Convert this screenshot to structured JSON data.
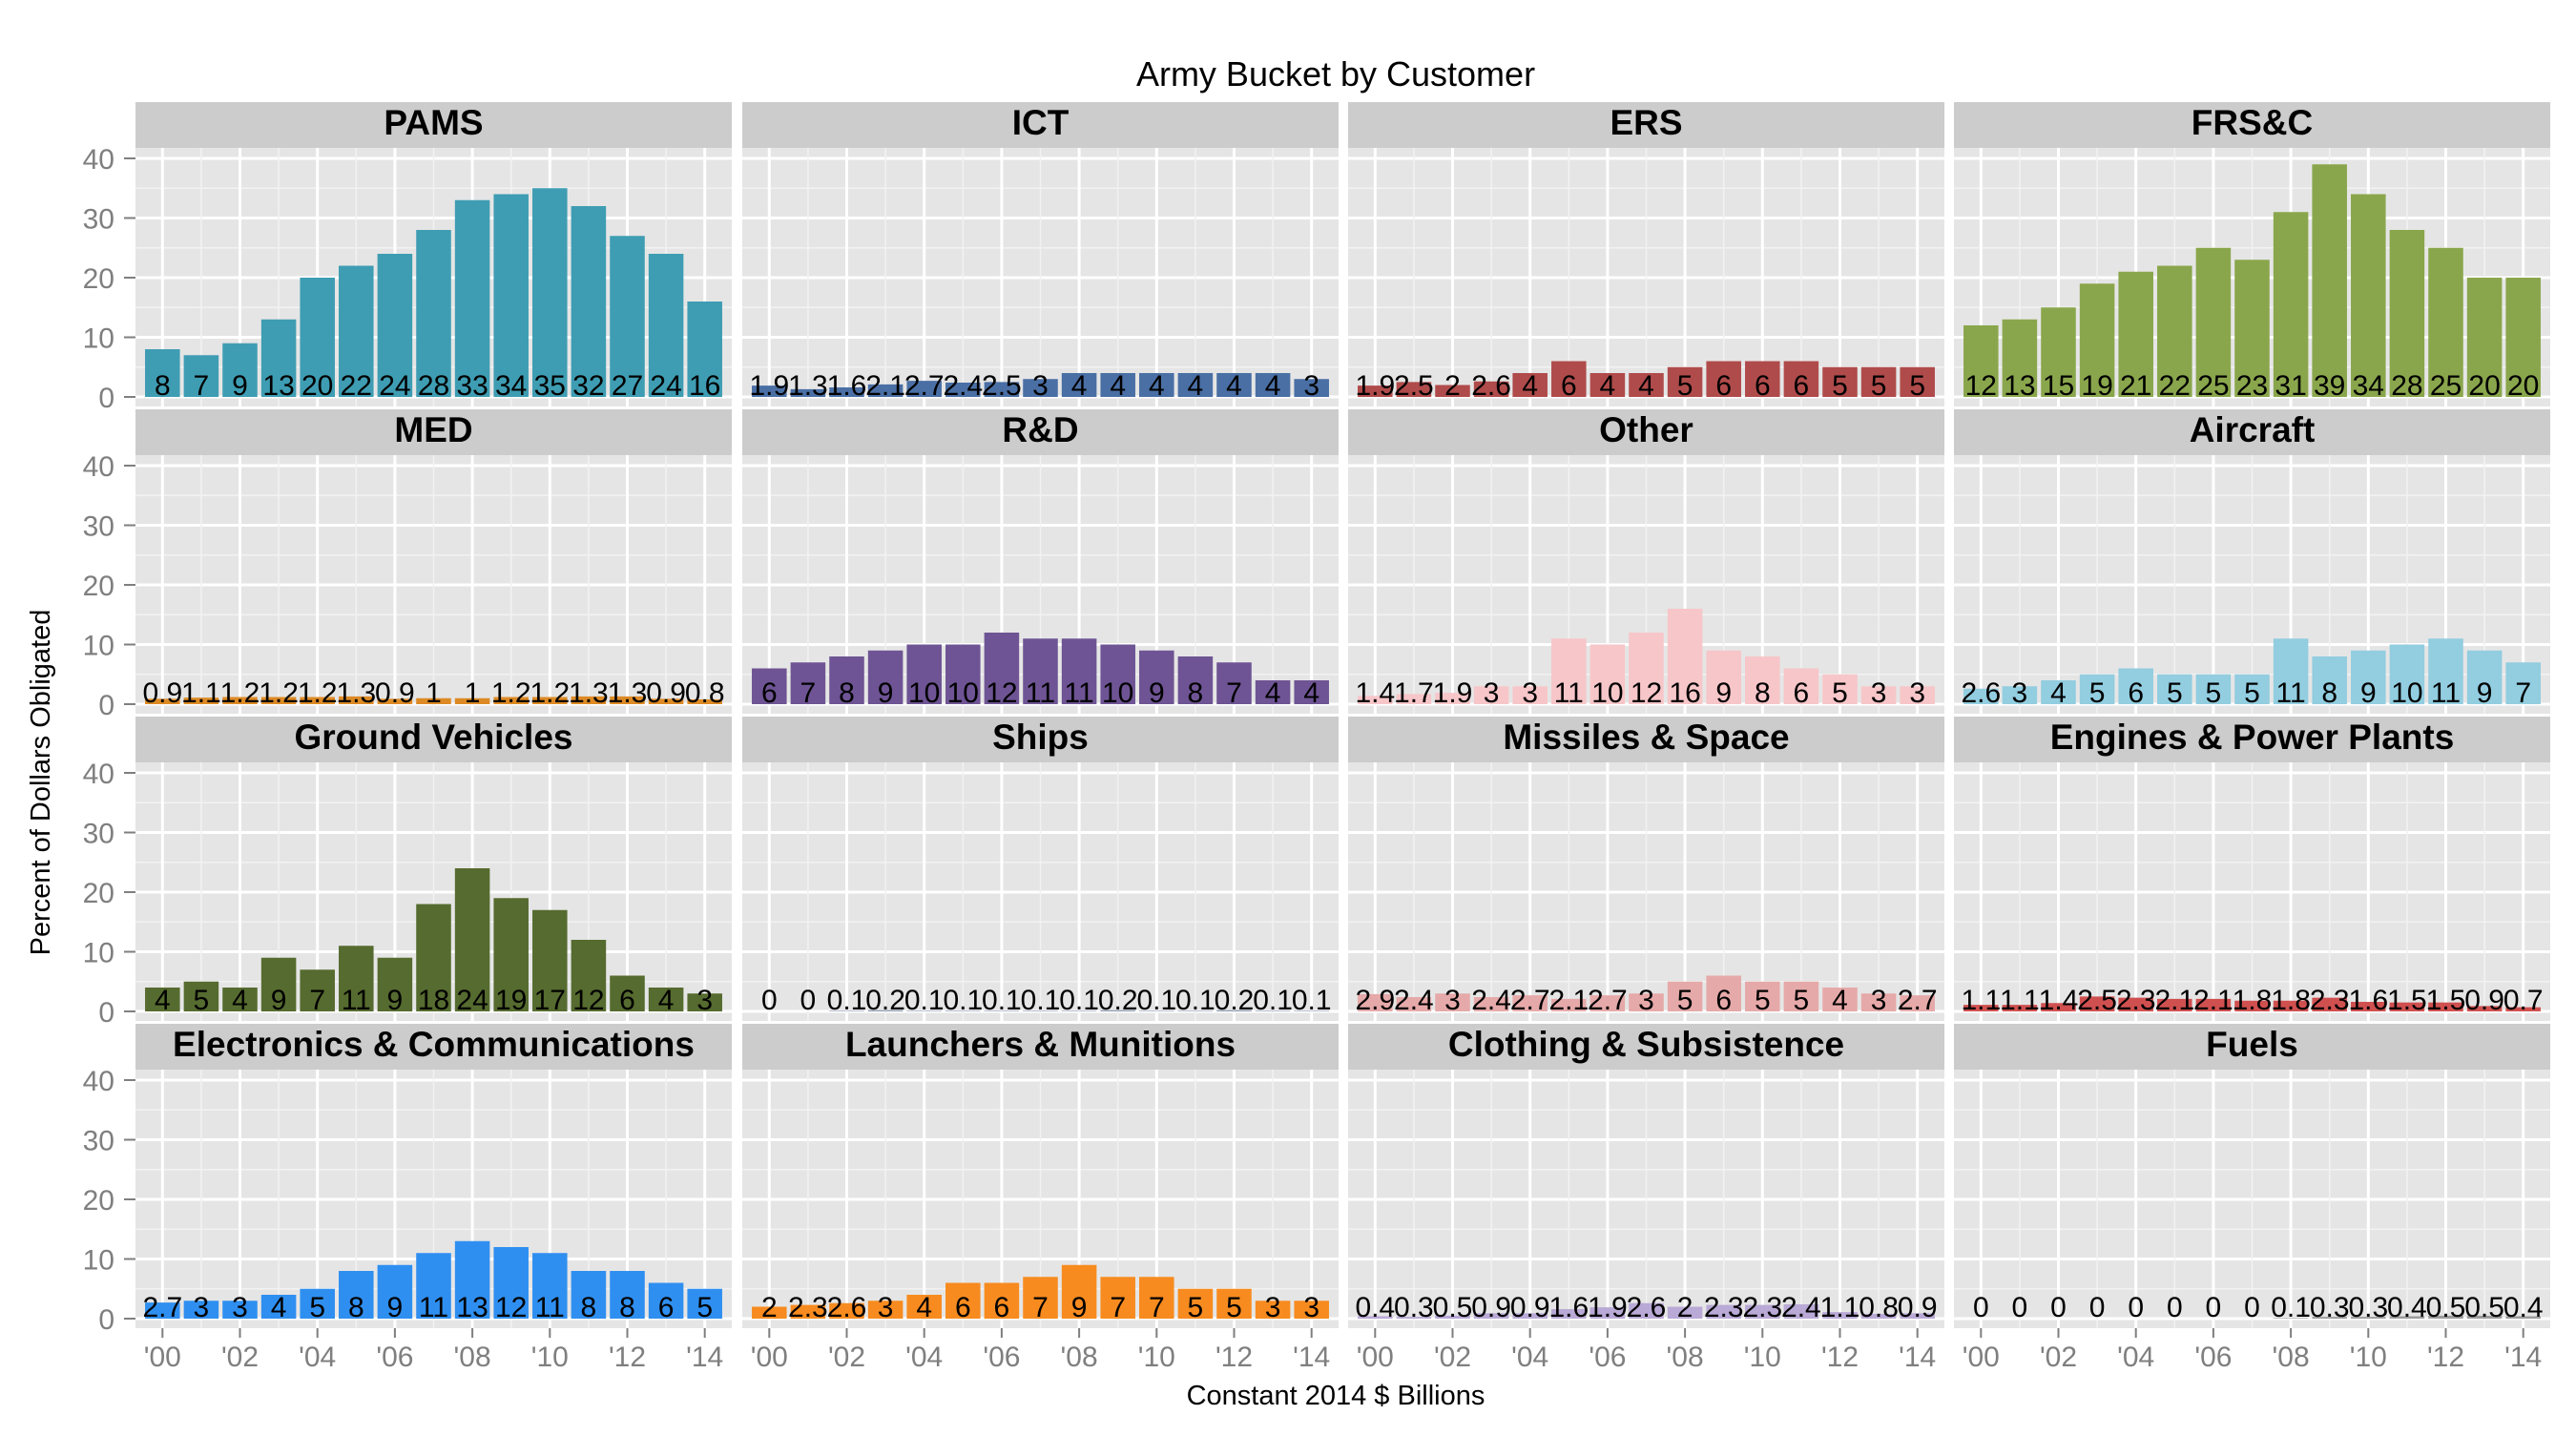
{
  "chart_data": {
    "type": "bar",
    "title": "Army Bucket by Customer",
    "xlabel": "Constant 2014 $ Billions",
    "ylabel": "Percent of Dollars Obligated",
    "ylim": [
      0,
      40
    ],
    "yticks": [
      0,
      10,
      20,
      30,
      40
    ],
    "years": [
      "'00",
      "'01",
      "'02",
      "'03",
      "'04",
      "'05",
      "'06",
      "'07",
      "'08",
      "'09",
      "'10",
      "'11",
      "'12",
      "'13",
      "'14"
    ],
    "xtick_labels": [
      "'00",
      "'02",
      "'04",
      "'06",
      "'08",
      "'10",
      "'12",
      "'14"
    ],
    "grid": true,
    "legend": "none",
    "panels": [
      {
        "name": "PAMS",
        "color": "#3e9db3",
        "values": [
          8,
          7,
          9,
          13,
          20,
          22,
          24,
          28,
          33,
          34,
          35,
          32,
          27,
          24,
          16
        ],
        "labels": [
          "8",
          "7",
          "9",
          "13",
          "20",
          "22",
          "24",
          "28",
          "33",
          "34",
          "35",
          "32",
          "27",
          "24",
          "16"
        ]
      },
      {
        "name": "ICT",
        "color": "#4a6fa5",
        "values": [
          1.9,
          1.3,
          1.6,
          2.1,
          2.7,
          2.4,
          2.5,
          3,
          4,
          4,
          4,
          4,
          4,
          4,
          3
        ],
        "labels": [
          "1.9",
          "1.3",
          "1.6",
          "2.1",
          "2.7",
          "2.4",
          "2.5",
          "3",
          "4",
          "4",
          "4",
          "4",
          "4",
          "4",
          "3"
        ]
      },
      {
        "name": "ERS",
        "color": "#b04b4b",
        "values": [
          1.9,
          2.5,
          2,
          2.6,
          4,
          6,
          4,
          4,
          5,
          6,
          6,
          6,
          5,
          5,
          5
        ],
        "labels": [
          "1.9",
          "2.5",
          "2",
          "2.6",
          "4",
          "6",
          "4",
          "4",
          "5",
          "6",
          "6",
          "6",
          "5",
          "5",
          "5"
        ]
      },
      {
        "name": "FRS&C",
        "color": "#8aa64c",
        "values": [
          12,
          13,
          15,
          19,
          21,
          22,
          25,
          23,
          31,
          39,
          34,
          28,
          25,
          20,
          20
        ],
        "labels": [
          "12",
          "13",
          "15",
          "19",
          "21",
          "22",
          "25",
          "23",
          "31",
          "39",
          "34",
          "28",
          "25",
          "20",
          "20"
        ]
      },
      {
        "name": "MED",
        "color": "#dd8a25",
        "values": [
          0.9,
          1.1,
          1.2,
          1.2,
          1.2,
          1.3,
          0.9,
          1,
          1,
          1.2,
          1.2,
          1.3,
          1.3,
          0.9,
          0.8
        ],
        "labels": [
          "0.9",
          "1.1",
          "1.2",
          "1.2",
          "1.2",
          "1.3",
          "0.9",
          "1",
          "1",
          "1.2",
          "1.2",
          "1.3",
          "1.3",
          "0.9",
          "0.8"
        ]
      },
      {
        "name": "R&D",
        "color": "#6e5494",
        "values": [
          6,
          7,
          8,
          9,
          10,
          10,
          12,
          11,
          11,
          10,
          9,
          8,
          7,
          4,
          4
        ],
        "labels": [
          "6",
          "7",
          "8",
          "9",
          "10",
          "10",
          "12",
          "11",
          "11",
          "10",
          "9",
          "8",
          "7",
          "4",
          "4"
        ]
      },
      {
        "name": "Other",
        "color": "#f7c6c9",
        "values": [
          1.4,
          1.7,
          1.9,
          3,
          3,
          11,
          10,
          12,
          16,
          9,
          8,
          6,
          5,
          3,
          3
        ],
        "labels": [
          "1.4",
          "1.7",
          "1.9",
          "3",
          "3",
          "11",
          "10",
          "12",
          "16",
          "9",
          "8",
          "6",
          "5",
          "3",
          "3"
        ]
      },
      {
        "name": "Aircraft",
        "color": "#92cde0",
        "values": [
          2.6,
          3,
          4,
          5,
          6,
          5,
          5,
          5,
          11,
          8,
          9,
          10,
          11,
          9,
          7
        ],
        "labels": [
          "2.6",
          "3",
          "4",
          "5",
          "6",
          "5",
          "5",
          "5",
          "11",
          "8",
          "9",
          "10",
          "11",
          "9",
          "7"
        ]
      },
      {
        "name": "Ground Vehicles",
        "color": "#566b2f",
        "values": [
          4,
          5,
          4,
          9,
          7,
          11,
          9,
          18,
          24,
          19,
          17,
          12,
          6,
          4,
          3
        ],
        "labels": [
          "4",
          "5",
          "4",
          "9",
          "7",
          "11",
          "9",
          "18",
          "24",
          "19",
          "17",
          "12",
          "6",
          "4",
          "3"
        ]
      },
      {
        "name": "Ships",
        "color": "#8a9ab0",
        "values": [
          0,
          0,
          0.1,
          0.2,
          0.1,
          0.1,
          0.1,
          0.1,
          0.1,
          0.2,
          0.1,
          0.1,
          0.2,
          0.1,
          0.1
        ],
        "labels": [
          "0",
          "0",
          "0.1",
          "0.2",
          "0.1",
          "0.1",
          "0.1",
          "0.1",
          "0.1",
          "0.2",
          "0.1",
          "0.1",
          "0.2",
          "0.1",
          "0.1"
        ]
      },
      {
        "name": "Missiles & Space",
        "color": "#e6a9a9",
        "values": [
          2.9,
          2.4,
          3,
          2.4,
          2.7,
          2.1,
          2.7,
          3,
          5,
          6,
          5,
          5,
          4,
          3,
          2.7
        ],
        "labels": [
          "2.9",
          "2.4",
          "3",
          "2.4",
          "2.7",
          "2.1",
          "2.7",
          "3",
          "5",
          "6",
          "5",
          "5",
          "4",
          "3",
          "2.7"
        ]
      },
      {
        "name": "Engines & Power Plants",
        "color": "#d05050",
        "values": [
          1.1,
          1.1,
          1.4,
          2.5,
          2.3,
          2.1,
          2.1,
          1.8,
          1.8,
          2.3,
          1.6,
          1.5,
          1.5,
          0.9,
          0.7
        ],
        "labels": [
          "1.1",
          "1.1",
          "1.4",
          "2.5",
          "2.3",
          "2.1",
          "2.1",
          "1.8",
          "1.8",
          "2.3",
          "1.6",
          "1.5",
          "1.5",
          "0.9",
          "0.7"
        ]
      },
      {
        "name": "Electronics & Communications",
        "color": "#2f8ff0",
        "values": [
          2.7,
          3,
          3,
          4,
          5,
          8,
          9,
          11,
          13,
          12,
          11,
          8,
          8,
          6,
          5
        ],
        "labels": [
          "2.7",
          "3",
          "3",
          "4",
          "5",
          "8",
          "9",
          "11",
          "13",
          "12",
          "11",
          "8",
          "8",
          "6",
          "5"
        ]
      },
      {
        "name": "Launchers & Munitions",
        "color": "#f78b1f",
        "values": [
          2,
          2.3,
          2.6,
          3,
          4,
          6,
          6,
          7,
          9,
          7,
          7,
          5,
          5,
          3,
          3
        ],
        "labels": [
          "2",
          "2.3",
          "2.6",
          "3",
          "4",
          "6",
          "6",
          "7",
          "9",
          "7",
          "7",
          "5",
          "5",
          "3",
          "3"
        ]
      },
      {
        "name": "Clothing & Subsistence",
        "color": "#b9a9d6",
        "values": [
          0.4,
          0.3,
          0.5,
          0.9,
          0.9,
          1.6,
          1.9,
          2.6,
          2,
          2.3,
          2.3,
          2.4,
          1.1,
          0.8,
          0.9
        ],
        "labels": [
          "0.4",
          "0.3",
          "0.5",
          "0.9",
          "0.9",
          "1.6",
          "1.9",
          "2.6",
          "2",
          "2.3",
          "2.3",
          "2.4",
          "1.1",
          "0.8",
          "0.9"
        ]
      },
      {
        "name": "Fuels",
        "color": "#9c9c9c",
        "values": [
          0,
          0,
          0,
          0,
          0,
          0,
          0,
          0,
          0.1,
          0.3,
          0.3,
          0.4,
          0.5,
          0.5,
          0.4
        ],
        "labels": [
          "0",
          "0",
          "0",
          "0",
          "0",
          "0",
          "0",
          "0",
          "0.1",
          "0.3",
          "0.3",
          "0.4",
          "0.5",
          "0.5",
          "0.4"
        ]
      }
    ]
  }
}
